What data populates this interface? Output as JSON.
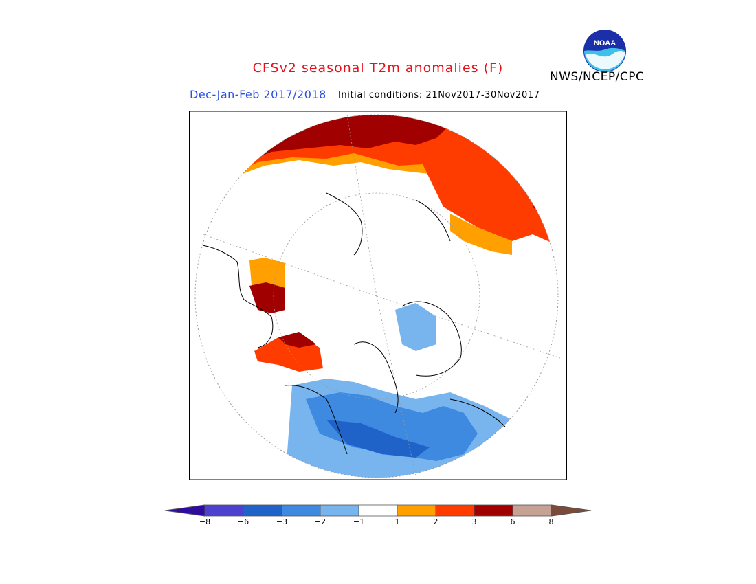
{
  "header": {
    "title": "CFSv2 seasonal T2m anomalies (F)",
    "period": "Dec-Jan-Feb 2017/2018",
    "initial_conditions": "Initial conditions: 21Nov2017-30Nov2017",
    "agency": "NWS/NCEP/CPC",
    "logo_text": "NOAA"
  },
  "colors": {
    "title": "#e8101a",
    "period": "#2b50e0",
    "frame": "#000000",
    "anom_m8": "#2e0c9e",
    "anom_m6": "#4d42cf",
    "anom_m3": "#1f63c9",
    "anom_m2": "#3d8ae0",
    "anom_m1": "#78b4ee",
    "anom_0": "#ffffff",
    "anom_p1": "#ff9f00",
    "anom_p2": "#ff3c00",
    "anom_p3": "#a10000",
    "anom_p6": "#c5a294",
    "anom_p8": "#7a4a3a"
  },
  "legend": {
    "ticks": [
      "-8",
      "-6",
      "-3",
      "-2",
      "-1",
      "1",
      "2",
      "3",
      "6",
      "8"
    ],
    "bins": [
      "#4d42cf",
      "#1f63c9",
      "#3d8ae0",
      "#78b4ee",
      "#ffffff",
      "#ff9f00",
      "#ff3c00",
      "#a10000",
      "#c5a294"
    ],
    "low_arrow": "#2e0c9e",
    "high_arrow": "#7a4a3a"
  }
}
